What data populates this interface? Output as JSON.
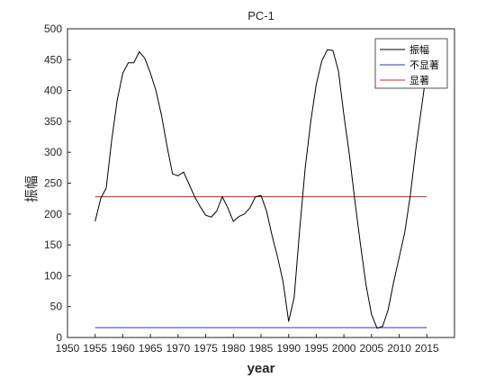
{
  "chart_data": {
    "type": "line",
    "title": "PC-1",
    "xlabel": "year",
    "ylabel": "振幅",
    "xlim": [
      1950,
      2020
    ],
    "ylim": [
      0,
      500
    ],
    "xticks": [
      1950,
      1955,
      1960,
      1965,
      1970,
      1975,
      1980,
      1985,
      1990,
      1995,
      2000,
      2005,
      2010,
      2015
    ],
    "yticks": [
      0,
      50,
      100,
      150,
      200,
      250,
      300,
      350,
      400,
      450,
      500
    ],
    "grid": false,
    "legend_position": "top-right",
    "series": [
      {
        "name": "振幅",
        "color": "#000000",
        "x": [
          1955,
          1956,
          1957,
          1958,
          1959,
          1960,
          1961,
          1962,
          1963,
          1964,
          1965,
          1966,
          1967,
          1968,
          1969,
          1970,
          1971,
          1972,
          1973,
          1974,
          1975,
          1976,
          1977,
          1978,
          1979,
          1980,
          1981,
          1982,
          1983,
          1984,
          1985,
          1986,
          1987,
          1988,
          1989,
          1990,
          1991,
          1992,
          1993,
          1994,
          1995,
          1996,
          1997,
          1998,
          1999,
          2000,
          2001,
          2002,
          2003,
          2004,
          2005,
          2006,
          2007,
          2008,
          2009,
          2010,
          2011,
          2012,
          2013,
          2014,
          2015
        ],
        "values": [
          188,
          225,
          242,
          320,
          385,
          428,
          445,
          445,
          463,
          452,
          428,
          400,
          360,
          310,
          265,
          262,
          268,
          248,
          228,
          212,
          198,
          195,
          205,
          228,
          210,
          188,
          196,
          200,
          210,
          228,
          230,
          205,
          165,
          130,
          90,
          26,
          65,
          175,
          275,
          350,
          410,
          448,
          466,
          465,
          432,
          360,
          295,
          220,
          150,
          85,
          37,
          15,
          18,
          45,
          90,
          130,
          170,
          230,
          305,
          370,
          435
        ]
      },
      {
        "name": "不显著",
        "color": "#3333cc",
        "x": [
          1955,
          2015
        ],
        "values": [
          16,
          16
        ]
      },
      {
        "name": "显著",
        "color": "#cc2222",
        "x": [
          1955,
          2015
        ],
        "values": [
          228,
          228
        ]
      }
    ]
  }
}
